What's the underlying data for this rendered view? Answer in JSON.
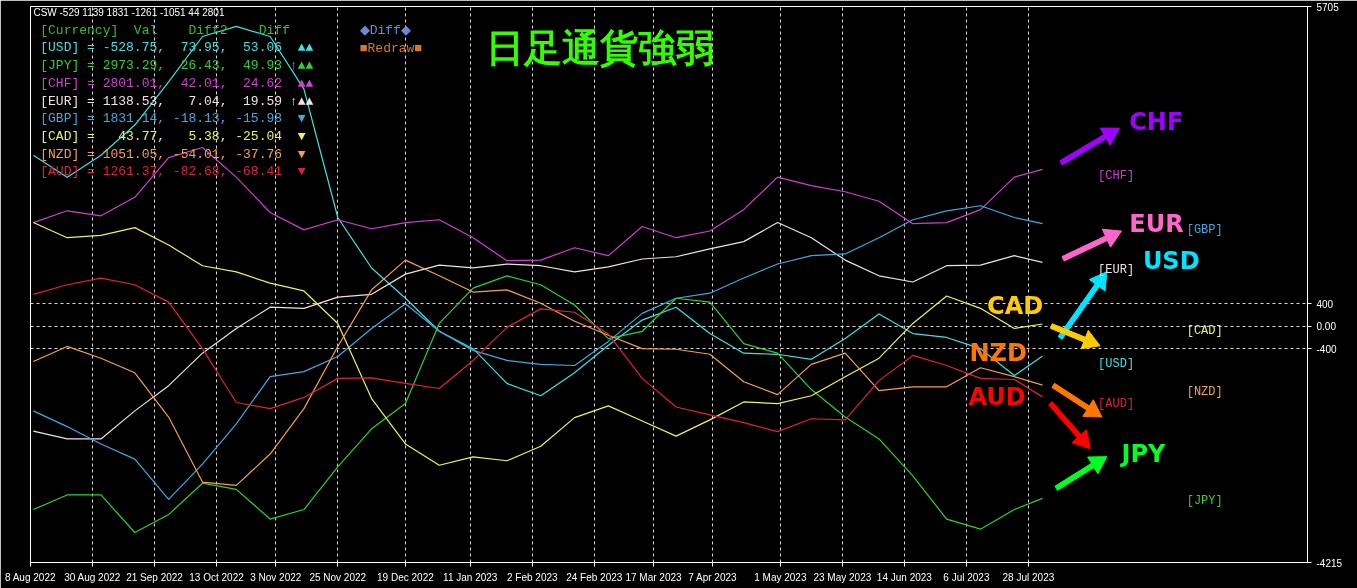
{
  "chart_data": {
    "type": "line",
    "title": "日足通貨強弱",
    "x": [
      "2022-08-09",
      "2022-08-21",
      "2022-09-02",
      "2022-09-14",
      "2022-09-26",
      "2022-10-08",
      "2022-10-20",
      "2022-11-01",
      "2022-11-13",
      "2022-11-25",
      "2022-12-07",
      "2022-12-19",
      "2022-12-31",
      "2023-01-12",
      "2023-01-24",
      "2023-02-05",
      "2023-02-17",
      "2023-03-01",
      "2023-03-13",
      "2023-03-25",
      "2023-04-06",
      "2023-04-18",
      "2023-04-30",
      "2023-05-12",
      "2023-05-24",
      "2023-06-05",
      "2023-06-17",
      "2023-06-29",
      "2023-07-11",
      "2023-07-23",
      "2023-08-02"
    ],
    "series": [
      {
        "name": "[USD]",
        "color": "#40e0e0",
        "values": [
          3050,
          2660,
          3050,
          3590,
          4360,
          5170,
          5350,
          5170,
          4230,
          1940,
          1040,
          500,
          -90,
          -400,
          -1020,
          -1240,
          -830,
          -340,
          110,
          340,
          -130,
          -480,
          -500,
          -590,
          -220,
          220,
          -130,
          -200,
          -400,
          -880,
          -530
        ]
      },
      {
        "name": "[JPY]",
        "color": "#30d030",
        "values": [
          -3270,
          -3010,
          -3010,
          -3680,
          -3360,
          -2800,
          -2910,
          -3440,
          -3270,
          -2510,
          -1830,
          -1380,
          50,
          680,
          900,
          740,
          380,
          -220,
          -90,
          500,
          430,
          -310,
          -480,
          -1130,
          -1620,
          -2010,
          -2670,
          -3440,
          -3620,
          -3270,
          -3070
        ]
      },
      {
        "name": "[CHF]",
        "color": "#d040d0",
        "values": [
          1850,
          2060,
          1970,
          2300,
          3010,
          3190,
          2660,
          2030,
          1720,
          1900,
          1740,
          1850,
          1900,
          1580,
          1170,
          1180,
          1400,
          1260,
          1780,
          1580,
          1700,
          2080,
          2660,
          2510,
          2400,
          2230,
          1830,
          1850,
          2080,
          2660,
          2800
        ]
      },
      {
        "name": "[EUR]",
        "color": "#f0e0e0",
        "values": [
          -1870,
          -2010,
          -2010,
          -1510,
          -1060,
          -480,
          -40,
          340,
          320,
          520,
          570,
          930,
          1090,
          1040,
          1110,
          1080,
          970,
          1060,
          1200,
          1240,
          1380,
          1510,
          1850,
          1580,
          1180,
          900,
          790,
          1080,
          1090,
          1260,
          1140
        ]
      },
      {
        "name": "[GBP]",
        "color": "#40a8e0",
        "values": [
          -1510,
          -1790,
          -2100,
          -2370,
          -3090,
          -2460,
          -1740,
          -900,
          -810,
          -540,
          -40,
          400,
          -90,
          -430,
          -610,
          -680,
          -700,
          -270,
          230,
          500,
          590,
          860,
          1110,
          1260,
          1290,
          1580,
          1900,
          2060,
          2150,
          1940,
          1830
        ]
      },
      {
        "name": "[CAD]",
        "color": "#f0f060",
        "values": [
          1850,
          1580,
          1620,
          1760,
          1450,
          1080,
          970,
          770,
          630,
          50,
          -1290,
          -2100,
          -2480,
          -2330,
          -2400,
          -2140,
          -1630,
          -1420,
          -1690,
          -1960,
          -1670,
          -1350,
          -1380,
          -1240,
          -900,
          -570,
          50,
          540,
          320,
          -40,
          40
        ]
      },
      {
        "name": "[NZD]",
        "color": "#f0a050",
        "values": [
          -630,
          -360,
          -570,
          -830,
          -1620,
          -2780,
          -2840,
          -2280,
          -1470,
          -360,
          650,
          1180,
          900,
          610,
          650,
          410,
          90,
          -160,
          -400,
          -410,
          -500,
          -990,
          -1220,
          -680,
          -480,
          -1150,
          -1080,
          -1080,
          -740,
          -900,
          -1050
        ]
      },
      {
        "name": "[AUD]",
        "color": "#e02040",
        "values": [
          570,
          740,
          860,
          740,
          430,
          -400,
          -1360,
          -1470,
          -1270,
          -930,
          -920,
          -1020,
          -1110,
          -610,
          -20,
          310,
          250,
          -140,
          -930,
          -1440,
          -1580,
          -1720,
          -1880,
          -1650,
          -1670,
          -970,
          -520,
          -700,
          -930,
          -950,
          -1260
        ]
      }
    ],
    "xlim": [
      "2022-08-08",
      "2023-11-04"
    ],
    "xticks": [
      {
        "value": "2022-08-08",
        "label": "8 Aug 2022"
      },
      {
        "value": "2022-08-30",
        "label": "30 Aug 2022"
      },
      {
        "value": "2022-09-21",
        "label": "21 Sep 2022"
      },
      {
        "value": "2022-10-13",
        "label": "13 Oct 2022"
      },
      {
        "value": "2022-11-03",
        "label": "3 Nov 2022"
      },
      {
        "value": "2022-11-25",
        "label": "25 Nov 2022"
      },
      {
        "value": "2022-12-19",
        "label": "19 Dec 2022"
      },
      {
        "value": "2023-01-11",
        "label": "11 Jan 2023"
      },
      {
        "value": "2023-02-02",
        "label": "2 Feb 2023"
      },
      {
        "value": "2023-02-24",
        "label": "24 Feb 2023"
      },
      {
        "value": "2023-03-17",
        "label": "17 Mar 2023"
      },
      {
        "value": "2023-04-07",
        "label": "7 Apr 2023"
      },
      {
        "value": "2023-05-01",
        "label": "1 May 2023"
      },
      {
        "value": "2023-05-23",
        "label": "23 May 2023"
      },
      {
        "value": "2023-06-14",
        "label": "14 Jun 2023"
      },
      {
        "value": "2023-07-06",
        "label": "6 Jul 2023"
      },
      {
        "value": "2023-07-28",
        "label": "28 Jul 2023"
      }
    ],
    "ylim": [
      -4215,
      5705
    ],
    "yticks": [
      5705,
      400,
      {
        "value": 0,
        "label": "0.00"
      },
      -400,
      -4215
    ],
    "grid": true,
    "line_style": "solid",
    "annotations": [
      "CSW -529 1139 1831 -1261 -1051 44 2801",
      "[Currency]  Val    Diff2    Diff",
      "[USD] = -528.75,  73.95,  53.06  ▲▲",
      "[JPY] = 2973.29,  26.43,  49.93 ↑▲▲",
      "[CHF] = 2801.01,  42.01,  24.62  ▲▲",
      "[EUR] = 1138.53,   7.04,  19.59 ↑▲▲",
      "[GBP] = 1831.14, -18.13, -15.98  ▼",
      "[CAD] =   43.77,   5.38, -25.04  ▼",
      "[NZD] = 1051.05, -54.01, -37.76  ▼",
      "[AUD] = 1261.37, -82.68, -68.41  ▼",
      "◆Diff◆",
      "■Redraw■",
      "CHF",
      "EUR",
      "USD",
      "CAD",
      "NZD",
      "AUD",
      "JPY"
    ]
  }
}
